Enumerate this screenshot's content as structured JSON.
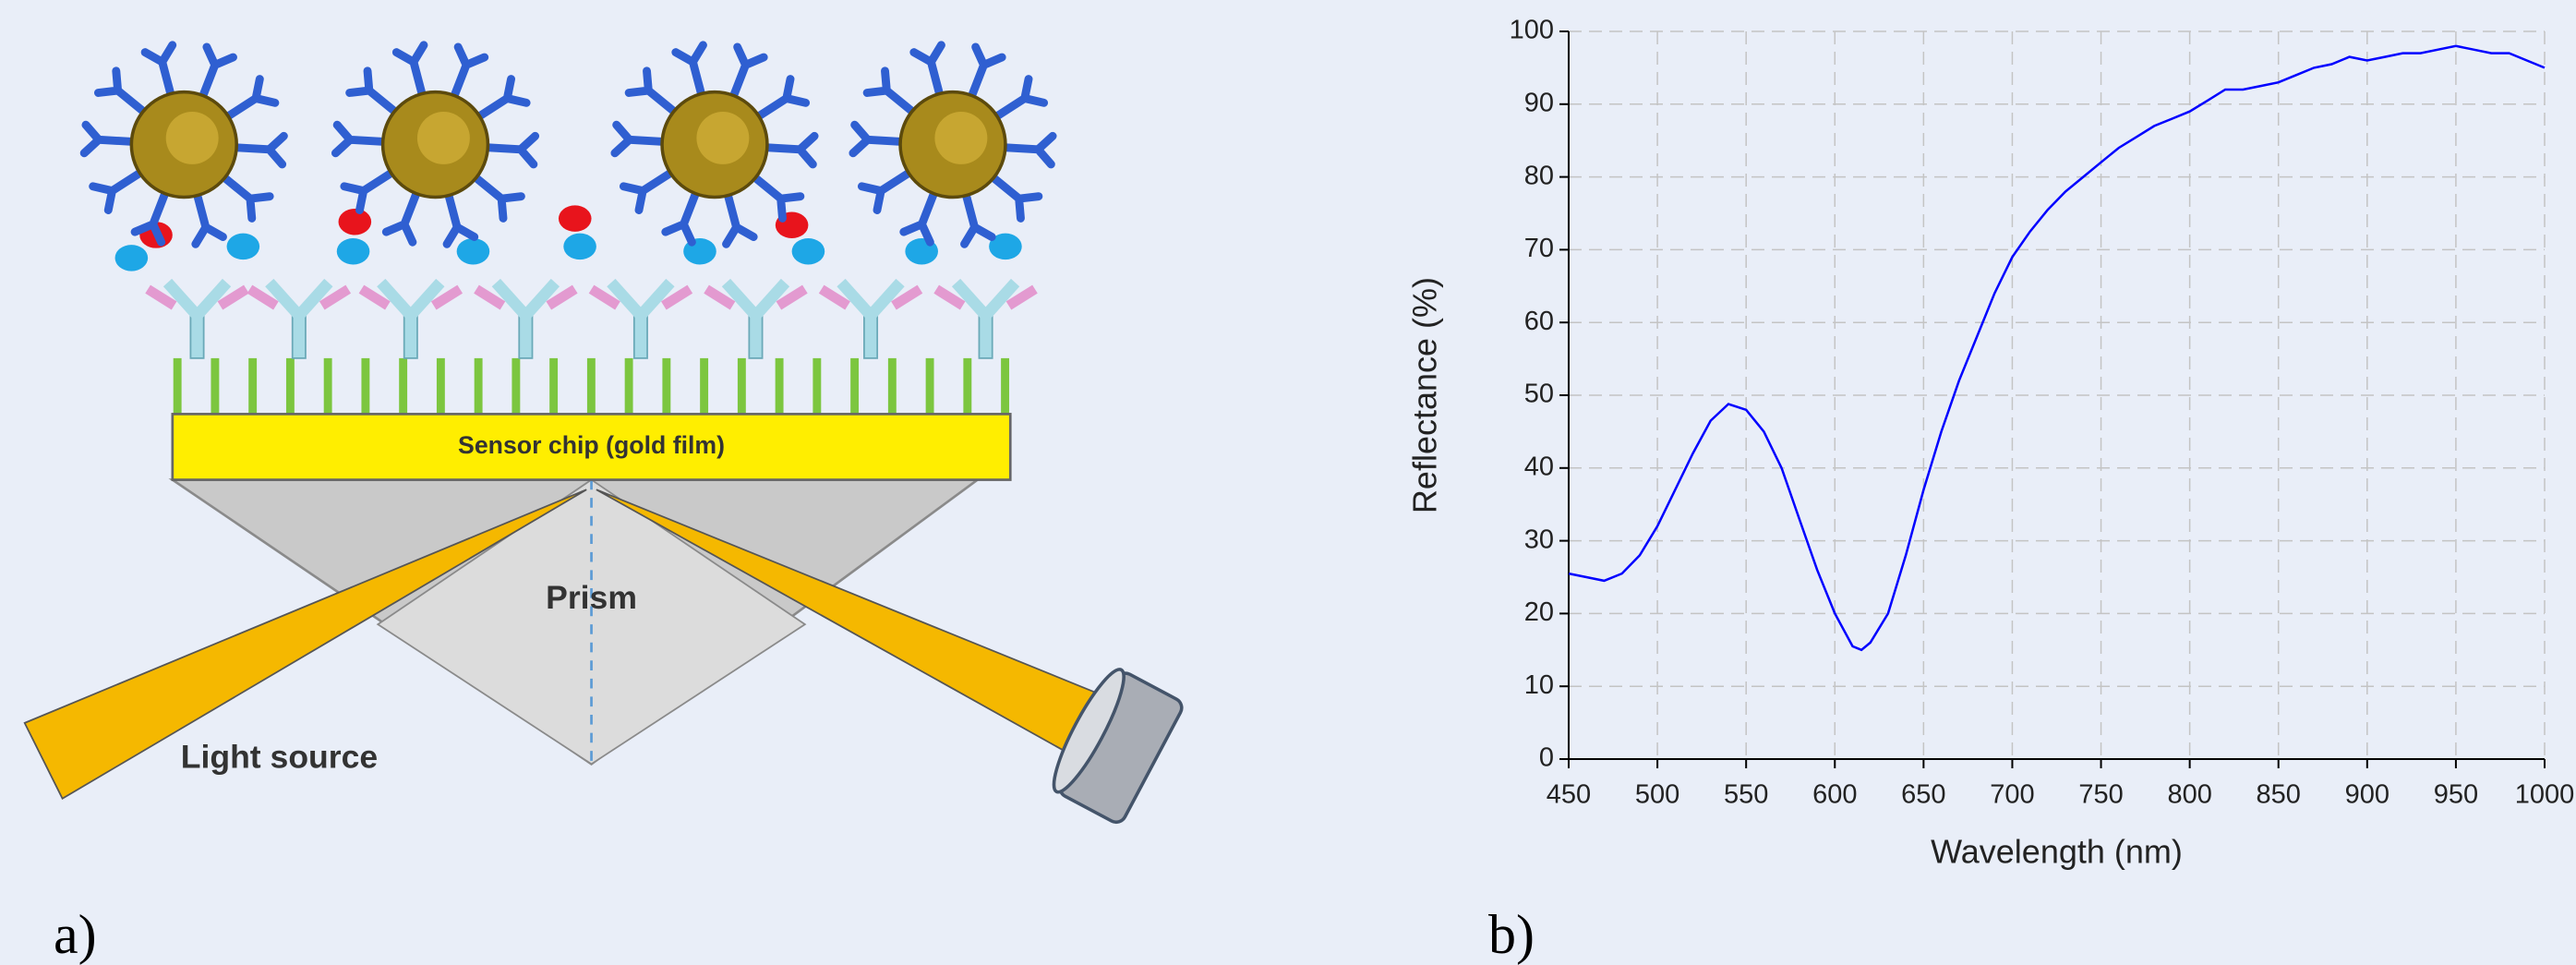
{
  "diagram": {
    "chip_label": "Sensor chip (gold film)",
    "prism_label": "Prism",
    "source_label": "Light source",
    "panel_a": "a)"
  },
  "panel_b": "b)",
  "chart_data": {
    "type": "line",
    "color": "#0000ff",
    "grid": true,
    "xlabel": "Wavelength (nm)",
    "ylabel": "Reflectance (%)",
    "x": [
      450,
      460,
      470,
      480,
      490,
      500,
      510,
      520,
      530,
      540,
      550,
      560,
      570,
      580,
      590,
      600,
      610,
      615,
      620,
      630,
      640,
      650,
      660,
      670,
      680,
      690,
      700,
      710,
      720,
      730,
      740,
      750,
      760,
      770,
      780,
      790,
      800,
      810,
      820,
      830,
      840,
      850,
      860,
      870,
      880,
      890,
      900,
      910,
      920,
      930,
      940,
      950,
      960,
      970,
      980,
      990,
      1000
    ],
    "values": [
      25.5,
      25,
      24.5,
      25.5,
      28,
      32,
      37,
      42,
      46.5,
      48.8,
      48,
      45,
      40,
      33,
      26,
      20,
      15.5,
      15,
      16,
      20,
      28,
      37,
      45,
      52,
      58,
      64,
      69,
      72.5,
      75.5,
      78,
      80,
      82,
      84,
      85.5,
      87,
      88,
      89,
      90.5,
      92,
      92,
      92.5,
      93,
      94,
      95,
      95.5,
      96.5,
      96,
      96.5,
      97,
      97,
      97.5,
      98,
      97.5,
      97,
      97,
      96,
      95
    ],
    "xlim": [
      450,
      1000
    ],
    "ylim": [
      0,
      100
    ],
    "xticks": [
      450,
      500,
      550,
      600,
      650,
      700,
      750,
      800,
      850,
      900,
      950,
      1000
    ],
    "yticks": [
      0,
      10,
      20,
      30,
      40,
      50,
      60,
      70,
      80,
      90,
      100
    ]
  }
}
